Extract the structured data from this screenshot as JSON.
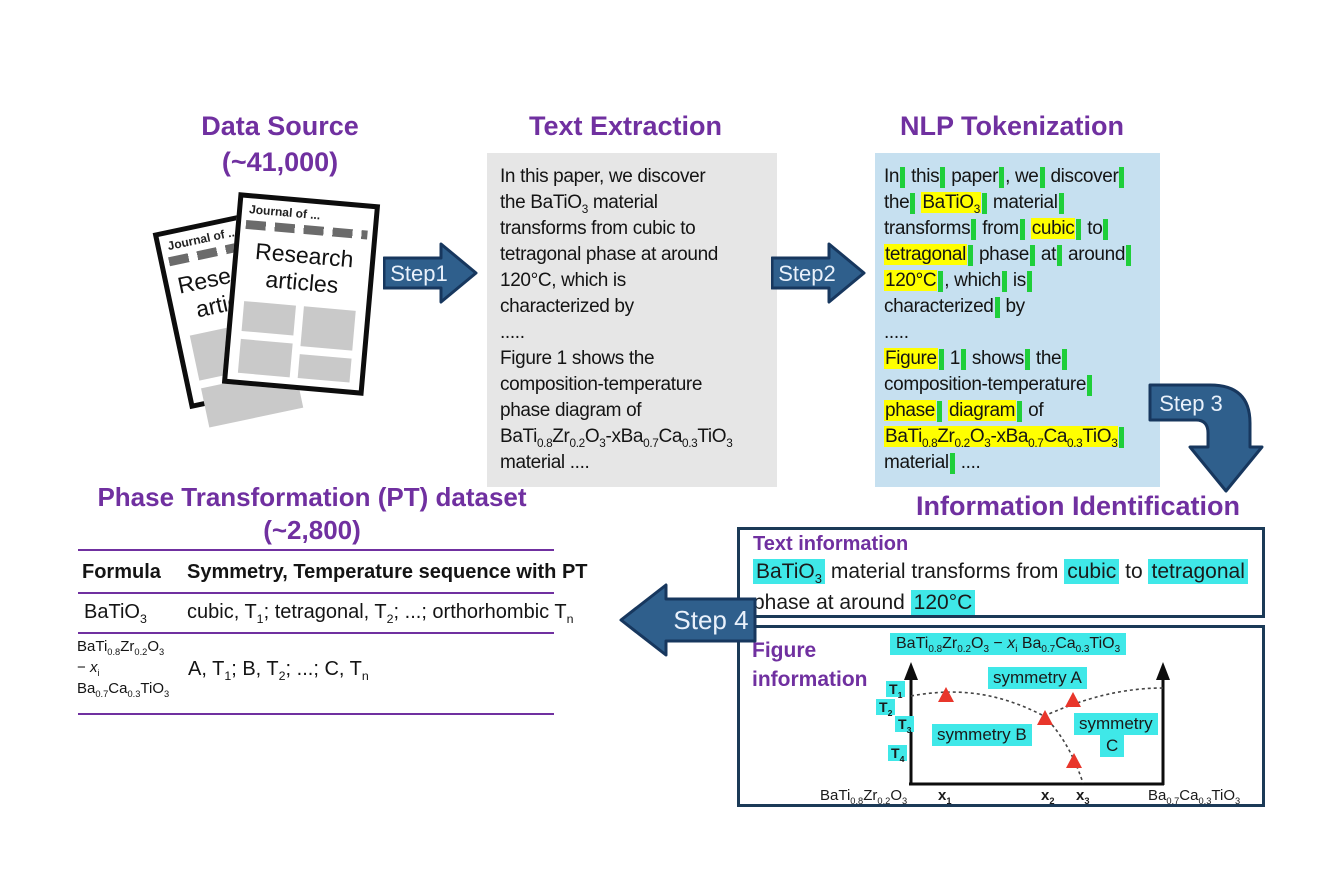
{
  "colors": {
    "accent_purple": "#7030a0",
    "arrow_fill": "#2f5f8c",
    "arrow_border": "#17375e",
    "token_highlight_yellow": "#ffff00",
    "token_bar_green": "#1fcf3a",
    "entity_highlight_cyan": "#3fe8e8",
    "nlp_box_blue": "#c6e0f0",
    "extraction_box_gray": "#e6e6e6",
    "triangle_red": "#e8362b",
    "info_box_border": "#1b3a57"
  },
  "data_source": {
    "title": "Data Source",
    "count": "(~41,000)",
    "pages": [
      {
        "header": "Journal of ...",
        "title": "Research articles"
      },
      {
        "header": "Journal of ...",
        "title": "Research articles"
      }
    ]
  },
  "steps": {
    "s1": "Step1",
    "s2": "Step2",
    "s3": "Step 3",
    "s4": "Step 4"
  },
  "text_extraction": {
    "title": "Text Extraction",
    "lines": [
      "In this paper, we discover",
      "the BaTiO~3~ material",
      "transforms from cubic to",
      "tetragonal phase at around",
      "120°C, which is",
      "characterized by",
      ".....",
      "Figure 1 shows the",
      "composition-temperature",
      "phase diagram of",
      "BaTi~0.8~Zr~0.2~O~3~-xBa~0.7~Ca~0.3~TiO~3~",
      "material ...."
    ]
  },
  "nlp": {
    "title": "NLP Tokenization",
    "lines": [
      [
        {
          "t": "In",
          "b": 1
        },
        {
          "t": "this",
          "b": 1
        },
        {
          "t": "paper",
          "b": 1
        },
        {
          "t": ",",
          "f": 1
        },
        {
          "t": "we",
          "b": 1
        },
        {
          "t": "discover",
          "b": 1
        }
      ],
      [
        {
          "t": "the",
          "b": 1
        },
        {
          "t": "BaTiO~3~",
          "h": "y",
          "b": 1
        },
        {
          "t": "material",
          "b": 1
        }
      ],
      [
        {
          "t": "transforms",
          "b": 1
        },
        {
          "t": "from",
          "b": 1
        },
        {
          "t": "cubic",
          "h": "y",
          "b": 1
        },
        {
          "t": "to",
          "b": 1
        }
      ],
      [
        {
          "t": "tetragonal",
          "h": "y",
          "b": 1
        },
        {
          "t": "phase",
          "b": 1
        },
        {
          "t": "at",
          "b": 1
        },
        {
          "t": "around",
          "b": 1
        }
      ],
      [
        {
          "t": "120°C",
          "h": "y",
          "b": 1
        },
        {
          "t": ",",
          "f": 1
        },
        {
          "t": "which",
          "b": 1
        },
        {
          "t": "is",
          "b": 1
        }
      ],
      [
        {
          "t": "characterized",
          "b": 1
        },
        {
          "t": "by"
        }
      ],
      [
        {
          "t": "....."
        }
      ],
      [
        {
          "t": "Figure",
          "h": "y",
          "b": 1
        },
        {
          "t": "1",
          "b": 1
        },
        {
          "t": "shows",
          "b": 1
        },
        {
          "t": "the",
          "b": 1
        }
      ],
      [
        {
          "t": "composition-temperature",
          "b": 1
        }
      ],
      [
        {
          "t": "phase",
          "h": "y",
          "b": 1
        },
        {
          "t": "diagram",
          "h": "y",
          "b": 1
        },
        {
          "t": "of"
        }
      ],
      [
        {
          "t": "BaTi~0.8~Zr~0.2~O~3~-xBa~0.7~Ca~0.3~TiO~3~",
          "h": "y",
          "b": 1
        }
      ],
      [
        {
          "t": "material",
          "b": 1
        },
        {
          "t": "...."
        }
      ]
    ]
  },
  "information_identification": {
    "title": "Information Identification",
    "text_information": {
      "title": "Text information",
      "lines": [
        [
          {
            "t": "BaTiO~3~",
            "h": "c"
          },
          {
            "t": "material"
          },
          {
            "t": "transforms"
          },
          {
            "t": "from"
          },
          {
            "t": "cubic",
            "h": "c"
          },
          {
            "t": "to"
          },
          {
            "t": "tetragonal",
            "h": "c"
          }
        ],
        [
          {
            "t": "phase"
          },
          {
            "t": "at"
          },
          {
            "t": "around"
          },
          {
            "t": "120°C",
            "h": "c"
          }
        ]
      ]
    },
    "figure_information": {
      "title_line1": "Figure",
      "title_line2": "information",
      "formula": "BaTi~0.8~Zr~0.2~O~3~ − ^x^~i~ Ba~0.7~Ca~0.3~TiO~3~",
      "symmetry_a": "symmetry A",
      "symmetry_b": "symmetry B",
      "symmetry_c_line1": "symmetry",
      "symmetry_c_line2": "C",
      "t_labels": [
        "T~1~",
        "T~2~",
        "T~3~",
        "T~4~"
      ],
      "x_labels": [
        "x~1~",
        "x~2~",
        "x~3~"
      ],
      "x_left": "BaTi~0.8~Zr~0.2~O~3~",
      "x_right": "Ba~0.7~Ca~0.3~TiO~3~"
    }
  },
  "dataset": {
    "title": "Phase Transformation (PT) dataset",
    "count": "(~2,800)",
    "columns": [
      "Formula",
      "Symmetry, Temperature sequence with PT"
    ],
    "rows": [
      {
        "formula": "BaTiO~3~",
        "sequence": "cubic, T~1~; tetragonal, T~2~; ...; orthorhombic T~n~"
      },
      {
        "formula_lines": [
          "BaTi~0.8~Zr~0.2~O~3~",
          "− ^x^~i~",
          "Ba~0.7~Ca~0.3~TiO~3~"
        ],
        "sequence": "A, T~1~; B, T~2~; ...; C, T~n~"
      }
    ]
  }
}
